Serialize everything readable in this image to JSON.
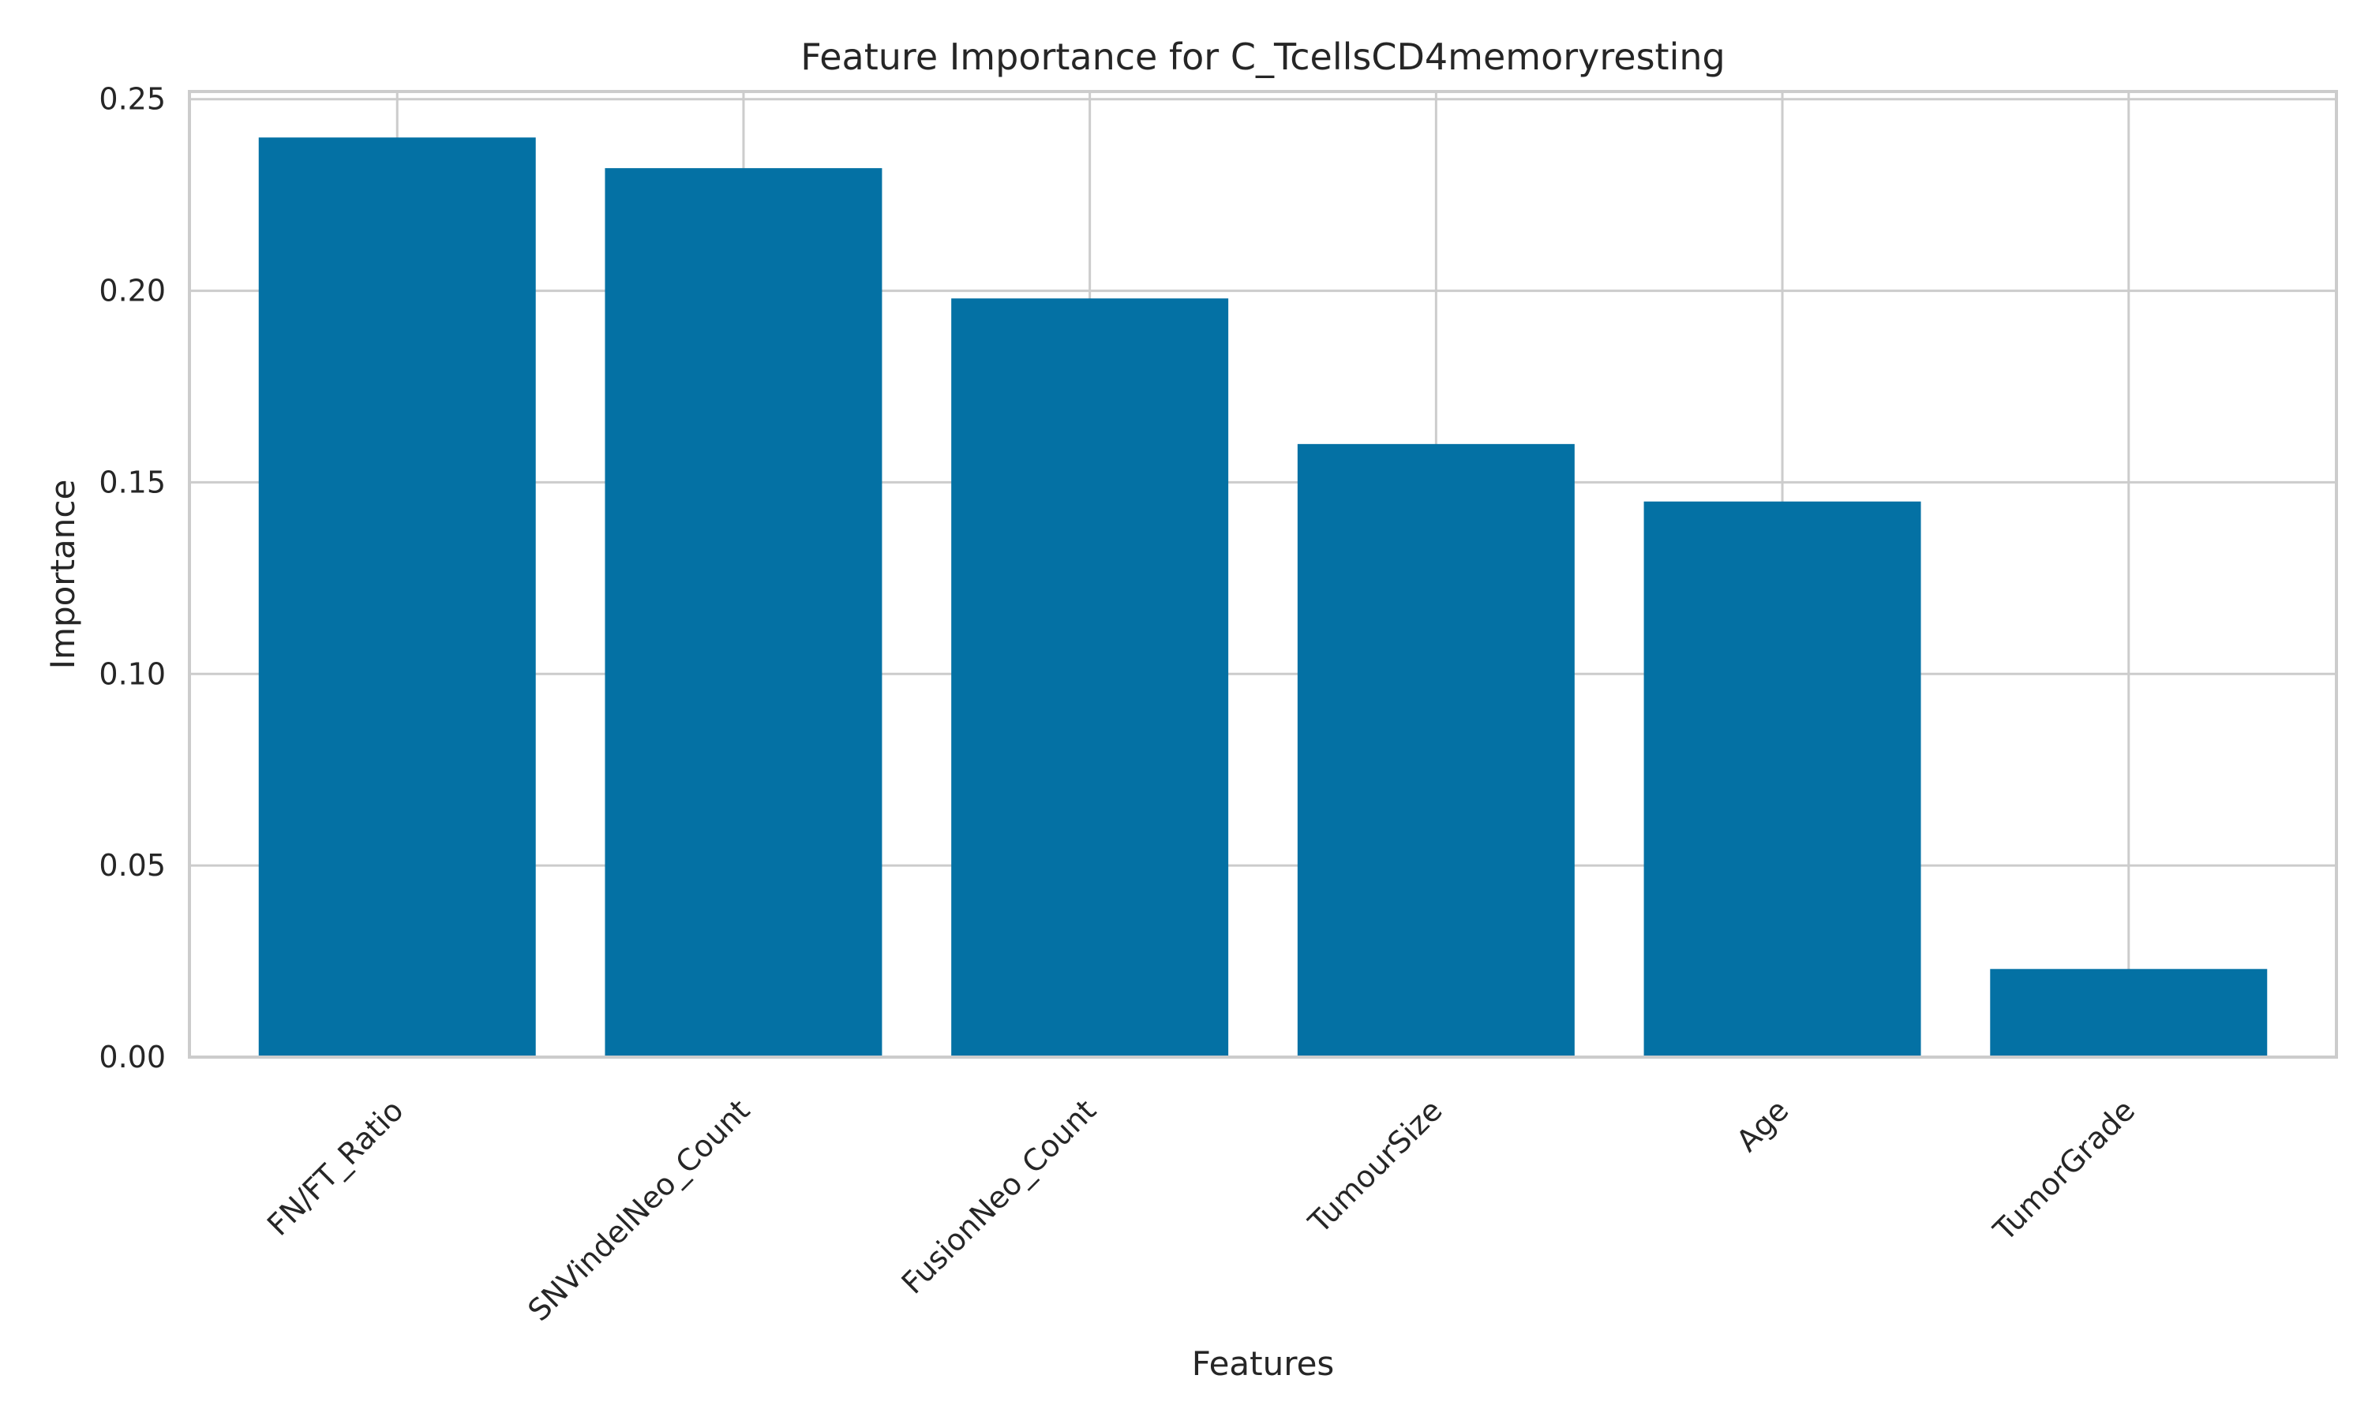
{
  "chart_data": {
    "type": "bar",
    "title": "Feature Importance for C_TcellsCD4memoryresting",
    "xlabel": "Features",
    "ylabel": "Importance",
    "categories": [
      "FN/FT_Ratio",
      "SNVindelNeo_Count",
      "FusionNeo_Count",
      "TumourSize",
      "Age",
      "TumorGrade"
    ],
    "values": [
      0.24,
      0.232,
      0.198,
      0.16,
      0.145,
      0.023
    ],
    "ylim": [
      0,
      0.252
    ],
    "yticks": [
      "0.00",
      "0.05",
      "0.10",
      "0.15",
      "0.20",
      "0.25"
    ],
    "grid": true,
    "bar_color": "#0471a4",
    "grid_color": "#cccccc"
  }
}
